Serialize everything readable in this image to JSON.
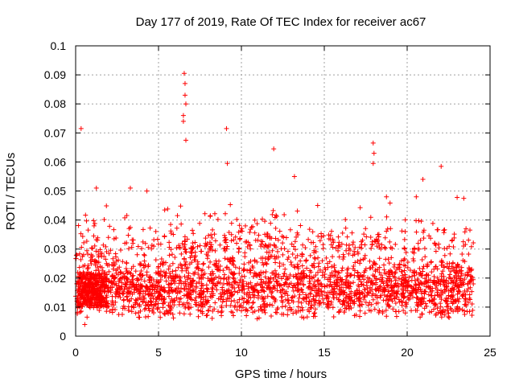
{
  "chart_data": {
    "type": "scatter",
    "title": "Day 177 of 2019, Rate Of TEC Index for receiver ac67",
    "xlabel": "GPS time / hours",
    "ylabel": "ROTI / TECUs",
    "xlim": [
      0,
      25
    ],
    "ylim": [
      0,
      0.1
    ],
    "xticks": [
      "0",
      "5",
      "10",
      "15",
      "20",
      "25"
    ],
    "yticks": [
      "0",
      "0.01",
      "0.02",
      "0.03",
      "0.04",
      "0.05",
      "0.06",
      "0.07",
      "0.08",
      "0.09",
      "0.1"
    ],
    "grid": true,
    "marker": "+",
    "colors": {
      "series": "#ff0000",
      "grid": "#a0a0a0",
      "axis": "#000000"
    },
    "series": [
      {
        "name": "ROTI",
        "x_range": [
          0,
          24
        ],
        "typical_band": [
          0.005,
          0.03
        ],
        "notable_points": [
          {
            "x": 0.33,
            "y": 0.0715
          },
          {
            "x": 6.55,
            "y": 0.0905
          },
          {
            "x": 6.6,
            "y": 0.087
          },
          {
            "x": 6.6,
            "y": 0.083
          },
          {
            "x": 6.65,
            "y": 0.08
          },
          {
            "x": 6.5,
            "y": 0.076
          },
          {
            "x": 6.5,
            "y": 0.074
          },
          {
            "x": 6.65,
            "y": 0.0675
          },
          {
            "x": 9.1,
            "y": 0.0715
          },
          {
            "x": 9.15,
            "y": 0.0595
          },
          {
            "x": 11.95,
            "y": 0.0645
          },
          {
            "x": 17.95,
            "y": 0.0665
          },
          {
            "x": 18.0,
            "y": 0.063
          },
          {
            "x": 17.95,
            "y": 0.0595
          },
          {
            "x": 22.05,
            "y": 0.0585
          },
          {
            "x": 13.2,
            "y": 0.055
          },
          {
            "x": 20.95,
            "y": 0.054
          },
          {
            "x": 1.25,
            "y": 0.051
          },
          {
            "x": 3.3,
            "y": 0.051
          },
          {
            "x": 4.3,
            "y": 0.05
          },
          {
            "x": 14.6,
            "y": 0.045
          },
          {
            "x": 18.75,
            "y": 0.048
          },
          {
            "x": 20.55,
            "y": 0.048
          },
          {
            "x": 23.55,
            "y": 0.037
          },
          {
            "x": 10.95,
            "y": 0.006
          },
          {
            "x": 0.55,
            "y": 0.004
          }
        ]
      }
    ]
  }
}
